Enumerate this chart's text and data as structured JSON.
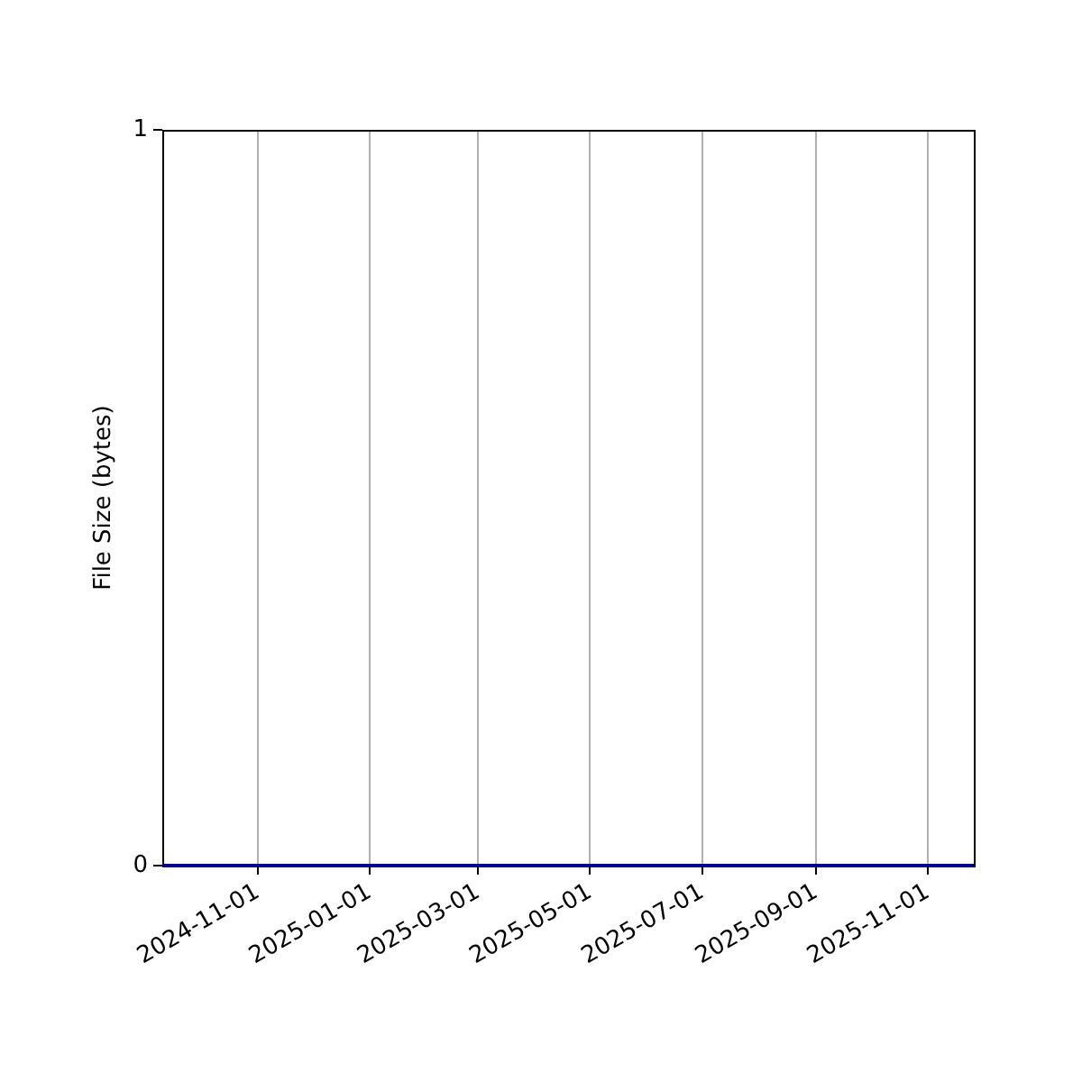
{
  "chart_data": {
    "type": "line",
    "ylabel": "File Size (bytes)",
    "x": [
      "2024-09-10",
      "2025-11-26"
    ],
    "values": [
      0,
      0
    ],
    "color": "#00008b",
    "xlim": [
      "2024-09-10",
      "2025-11-26"
    ],
    "xticks": [
      "2024-11-01",
      "2025-01-01",
      "2025-03-01",
      "2025-05-01",
      "2025-07-01",
      "2025-09-01",
      "2025-11-01"
    ],
    "ylim": [
      0,
      1
    ],
    "yticks": [
      0,
      1
    ],
    "grid": "x"
  }
}
